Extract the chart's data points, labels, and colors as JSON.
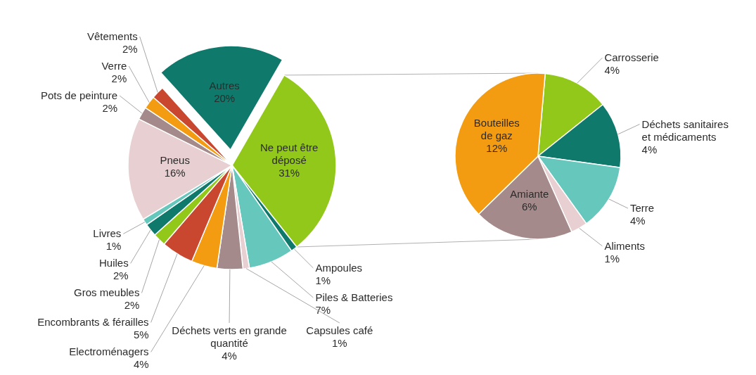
{
  "chart_data": [
    {
      "type": "pie",
      "categories": [
        "Ne peut être déposé",
        "Ampoules",
        "Piles & Batteries",
        "Capsules café",
        "Déchets verts en grande quantité",
        "Electroménagers",
        "Encombrants & férailles",
        "Gros meubles",
        "Huiles",
        "Livres",
        "Pneus",
        "Pots de peinture",
        "Verre",
        "Vêtements",
        "Autres"
      ],
      "values": [
        31,
        1,
        7,
        1,
        4,
        4,
        5,
        2,
        2,
        1,
        16,
        2,
        2,
        2,
        20
      ],
      "colors": [
        "#92c81a",
        "#0f7a6c",
        "#66c7bd",
        "#e8cfd2",
        "#a48a8a",
        "#f39c12",
        "#c9472f",
        "#92c81a",
        "#0f7a6c",
        "#66c7bd",
        "#e8cfd2",
        "#a48a8a",
        "#f39c12",
        "#c9472f",
        "#0f7a6c"
      ],
      "value_labels": [
        "31%",
        "1%",
        "7%",
        "1%",
        "4%",
        "4%",
        "5%",
        "2%",
        "2%",
        "1%",
        "16%",
        "2%",
        "2%",
        "2%",
        "20%"
      ]
    },
    {
      "type": "pie",
      "categories": [
        "Carrosserie",
        "Déchets sanitaires et médicaments",
        "Terre",
        "Aliments",
        "Amiante",
        "Bouteilles de gaz"
      ],
      "values": [
        4,
        4,
        4,
        1,
        6,
        12
      ],
      "colors": [
        "#92c81a",
        "#0f7a6c",
        "#66c7bd",
        "#e8cfd2",
        "#a48a8a",
        "#f39c12"
      ],
      "value_labels": [
        "4%",
        "4%",
        "4%",
        "1%",
        "6%",
        "12%"
      ]
    }
  ]
}
